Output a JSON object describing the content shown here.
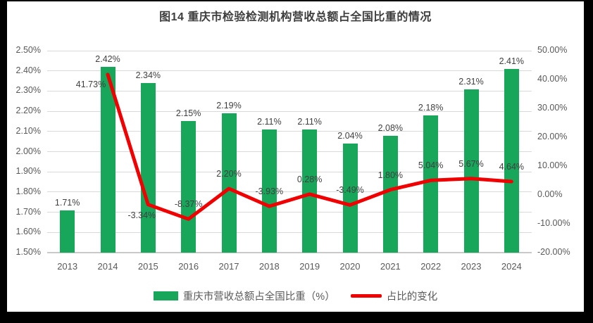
{
  "title": "图14 重庆市检验检测机构营收总额占全国比重的情况",
  "legend": [
    {
      "label": "重庆市营收总额占全国比重（%）",
      "color": "#17A65A",
      "marker": "bar-swatch"
    },
    {
      "label": "占比的变化",
      "color": "#F00000",
      "marker": "line-swatch"
    }
  ],
  "chart_data": {
    "type": "bar",
    "title": "图14 重庆市检验检测机构营收总额占全国比重的情况",
    "categories": [
      "2013",
      "2014",
      "2015",
      "2016",
      "2017",
      "2018",
      "2019",
      "2020",
      "2021",
      "2022",
      "2023",
      "2024"
    ],
    "series": [
      {
        "name": "重庆市营收总额占全国比重（%）",
        "type": "bar",
        "axis": "left",
        "color": "#17A65A",
        "values": [
          1.71,
          2.42,
          2.34,
          2.15,
          2.19,
          2.11,
          2.11,
          2.04,
          2.08,
          2.18,
          2.31,
          2.41
        ],
        "labels": [
          "1.71%",
          "2.42%",
          "2.34%",
          "2.15%",
          "2.19%",
          "2.11%",
          "2.11%",
          "2.04%",
          "2.08%",
          "2.18%",
          "2.31%",
          "2.41%"
        ]
      },
      {
        "name": "占比的变化",
        "type": "line",
        "axis": "right",
        "color": "#F00000",
        "values": [
          null,
          41.73,
          -3.34,
          -8.37,
          2.2,
          -3.93,
          0.28,
          -3.49,
          1.8,
          5.04,
          5.67,
          4.64
        ],
        "labels": [
          null,
          "41.73%",
          "-3.34%",
          "-8.37%",
          "2.20%",
          "-3.93%",
          "0.28%",
          "-3.49%",
          "1.80%",
          "5.04%",
          "5.67%",
          "4.64%"
        ]
      }
    ],
    "left_axis": {
      "min": 1.5,
      "max": 2.5,
      "step": 0.1,
      "tick_labels": [
        "2.50%",
        "2.40%",
        "2.30%",
        "2.20%",
        "2.10%",
        "2.00%",
        "1.90%",
        "1.80%",
        "1.70%",
        "1.60%",
        "1.50%"
      ]
    },
    "right_axis": {
      "min": -20,
      "max": 50,
      "step": 10,
      "tick_labels": [
        "50.00%",
        "40.00%",
        "30.00%",
        "20.00%",
        "10.00%",
        "0.00%",
        "-10.00%",
        "-20.00%"
      ]
    },
    "grid": true,
    "legend_position": "bottom"
  }
}
